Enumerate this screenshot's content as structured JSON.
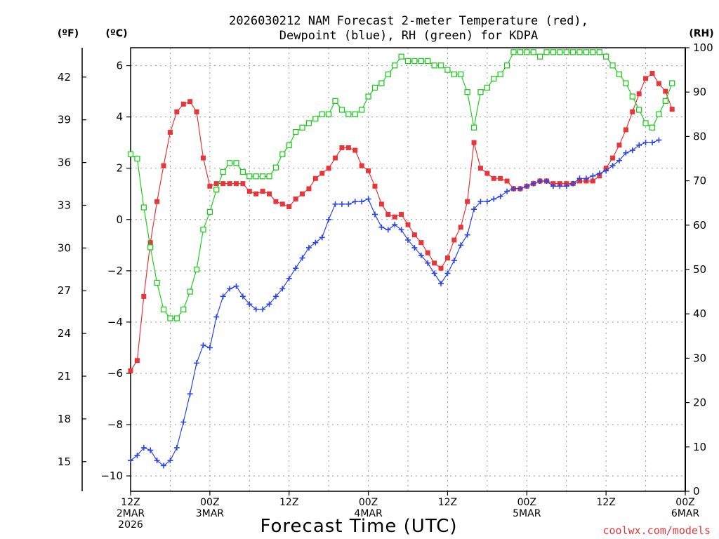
{
  "chart_data": {
    "type": "line",
    "title_line1": "2026030212 NAM Forecast 2-meter Temperature (red),",
    "title_line2": "Dewpoint (blue), RH (green) for KDPA",
    "xlabel": "Forecast Time (UTC)",
    "units": {
      "left_f": "(ºF)",
      "left_c": "(ºC)",
      "right_rh": "(RH)"
    },
    "credit": "coolwx.com/models",
    "x_range_hours": [
      0,
      84
    ],
    "x_ticks": [
      {
        "hour": 0,
        "lines": [
          "12Z",
          "2MAR",
          "2026"
        ]
      },
      {
        "hour": 12,
        "lines": [
          "00Z",
          "3MAR"
        ]
      },
      {
        "hour": 24,
        "lines": [
          "12Z"
        ]
      },
      {
        "hour": 36,
        "lines": [
          "00Z",
          "4MAR"
        ]
      },
      {
        "hour": 48,
        "lines": [
          "12Z"
        ]
      },
      {
        "hour": 60,
        "lines": [
          "00Z",
          "5MAR"
        ]
      },
      {
        "hour": 72,
        "lines": [
          "12Z"
        ]
      },
      {
        "hour": 84,
        "lines": [
          "00Z",
          "6MAR"
        ]
      }
    ],
    "c_axis": {
      "min": -10.6,
      "max": 6.7,
      "ticks": [
        -10,
        -8,
        -6,
        -4,
        -2,
        0,
        2,
        4,
        6
      ]
    },
    "f_axis": {
      "ticks": [
        15,
        18,
        21,
        24,
        27,
        30,
        33,
        36,
        39,
        42
      ]
    },
    "rh_axis": {
      "min": 0,
      "max": 100,
      "ticks": [
        0,
        10,
        20,
        30,
        40,
        50,
        60,
        70,
        80,
        90,
        100
      ]
    },
    "series": [
      {
        "key": "temperature",
        "color": "#e8353a",
        "marker": "filled-square",
        "units": "C",
        "values": [
          [
            0,
            -5.9
          ],
          [
            1,
            -5.5
          ],
          [
            2,
            -3.0
          ],
          [
            3,
            -0.9
          ],
          [
            4,
            0.7
          ],
          [
            5,
            2.1
          ],
          [
            6,
            3.4
          ],
          [
            7,
            4.2
          ],
          [
            8,
            4.5
          ],
          [
            9,
            4.6
          ],
          [
            10,
            4.2
          ],
          [
            11,
            2.4
          ],
          [
            12,
            1.3
          ],
          [
            13,
            1.4
          ],
          [
            14,
            1.4
          ],
          [
            15,
            1.4
          ],
          [
            16,
            1.4
          ],
          [
            17,
            1.4
          ],
          [
            18,
            1.1
          ],
          [
            19,
            1.0
          ],
          [
            20,
            1.1
          ],
          [
            21,
            1.0
          ],
          [
            22,
            0.7
          ],
          [
            23,
            0.6
          ],
          [
            24,
            0.5
          ],
          [
            25,
            0.8
          ],
          [
            26,
            1.0
          ],
          [
            27,
            1.2
          ],
          [
            28,
            1.6
          ],
          [
            29,
            1.8
          ],
          [
            30,
            2.0
          ],
          [
            31,
            2.4
          ],
          [
            32,
            2.8
          ],
          [
            33,
            2.8
          ],
          [
            34,
            2.7
          ],
          [
            35,
            2.1
          ],
          [
            36,
            1.9
          ],
          [
            37,
            1.3
          ],
          [
            38,
            0.6
          ],
          [
            39,
            0.2
          ],
          [
            40,
            0.1
          ],
          [
            41,
            0.2
          ],
          [
            42,
            -0.2
          ],
          [
            43,
            -0.6
          ],
          [
            44,
            -0.9
          ],
          [
            45,
            -1.3
          ],
          [
            46,
            -1.7
          ],
          [
            47,
            -1.9
          ],
          [
            48,
            -1.5
          ],
          [
            49,
            -0.8
          ],
          [
            50,
            -0.3
          ],
          [
            51,
            0.7
          ],
          [
            52,
            3.0
          ],
          [
            53,
            2.0
          ],
          [
            54,
            1.8
          ],
          [
            55,
            1.6
          ],
          [
            56,
            1.6
          ],
          [
            57,
            1.5
          ],
          [
            58,
            1.2
          ],
          [
            59,
            1.2
          ],
          [
            60,
            1.3
          ],
          [
            61,
            1.4
          ],
          [
            62,
            1.5
          ],
          [
            63,
            1.5
          ],
          [
            64,
            1.4
          ],
          [
            65,
            1.4
          ],
          [
            66,
            1.4
          ],
          [
            67,
            1.4
          ],
          [
            68,
            1.5
          ],
          [
            69,
            1.5
          ],
          [
            70,
            1.5
          ],
          [
            71,
            1.7
          ],
          [
            72,
            2.0
          ],
          [
            73,
            2.4
          ],
          [
            74,
            2.9
          ],
          [
            75,
            3.5
          ],
          [
            76,
            4.2
          ],
          [
            77,
            4.9
          ],
          [
            78,
            5.5
          ],
          [
            79,
            5.7
          ],
          [
            80,
            5.3
          ],
          [
            81,
            5.0
          ],
          [
            82,
            4.3
          ]
        ]
      },
      {
        "key": "dewpoint",
        "color": "#2b45e6",
        "marker": "plus",
        "units": "C",
        "values": [
          [
            0,
            -9.4
          ],
          [
            1,
            -9.2
          ],
          [
            2,
            -8.9
          ],
          [
            3,
            -9.0
          ],
          [
            4,
            -9.4
          ],
          [
            5,
            -9.6
          ],
          [
            6,
            -9.4
          ],
          [
            7,
            -8.9
          ],
          [
            8,
            -7.9
          ],
          [
            9,
            -6.8
          ],
          [
            10,
            -5.6
          ],
          [
            11,
            -4.9
          ],
          [
            12,
            -5.0
          ],
          [
            13,
            -3.8
          ],
          [
            14,
            -3.0
          ],
          [
            15,
            -2.7
          ],
          [
            16,
            -2.6
          ],
          [
            17,
            -3.0
          ],
          [
            18,
            -3.3
          ],
          [
            19,
            -3.5
          ],
          [
            20,
            -3.5
          ],
          [
            21,
            -3.3
          ],
          [
            22,
            -3.0
          ],
          [
            23,
            -2.7
          ],
          [
            24,
            -2.3
          ],
          [
            25,
            -1.9
          ],
          [
            26,
            -1.5
          ],
          [
            27,
            -1.1
          ],
          [
            28,
            -0.9
          ],
          [
            29,
            -0.7
          ],
          [
            30,
            0.0
          ],
          [
            31,
            0.6
          ],
          [
            32,
            0.6
          ],
          [
            33,
            0.6
          ],
          [
            34,
            0.7
          ],
          [
            35,
            0.7
          ],
          [
            36,
            0.8
          ],
          [
            37,
            0.2
          ],
          [
            38,
            -0.3
          ],
          [
            39,
            -0.4
          ],
          [
            40,
            -0.2
          ],
          [
            41,
            -0.4
          ],
          [
            42,
            -0.8
          ],
          [
            43,
            -1.1
          ],
          [
            44,
            -1.4
          ],
          [
            45,
            -1.7
          ],
          [
            46,
            -2.1
          ],
          [
            47,
            -2.5
          ],
          [
            48,
            -2.1
          ],
          [
            49,
            -1.6
          ],
          [
            50,
            -1.0
          ],
          [
            51,
            -0.6
          ],
          [
            52,
            0.4
          ],
          [
            53,
            0.7
          ],
          [
            54,
            0.7
          ],
          [
            55,
            0.8
          ],
          [
            56,
            0.9
          ],
          [
            57,
            1.1
          ],
          [
            58,
            1.2
          ],
          [
            59,
            1.2
          ],
          [
            60,
            1.3
          ],
          [
            61,
            1.4
          ],
          [
            62,
            1.5
          ],
          [
            63,
            1.5
          ],
          [
            64,
            1.3
          ],
          [
            65,
            1.3
          ],
          [
            66,
            1.3
          ],
          [
            67,
            1.4
          ],
          [
            68,
            1.6
          ],
          [
            69,
            1.6
          ],
          [
            70,
            1.7
          ],
          [
            71,
            1.8
          ],
          [
            72,
            1.9
          ],
          [
            73,
            2.1
          ],
          [
            74,
            2.3
          ],
          [
            75,
            2.6
          ],
          [
            76,
            2.7
          ],
          [
            77,
            2.9
          ],
          [
            78,
            3.0
          ],
          [
            79,
            3.0
          ],
          [
            80,
            3.1
          ]
        ]
      },
      {
        "key": "rh",
        "color": "#22cc22",
        "marker": "open-square",
        "units": "%",
        "values": [
          [
            0,
            76
          ],
          [
            1,
            75
          ],
          [
            2,
            64
          ],
          [
            3,
            55
          ],
          [
            4,
            47
          ],
          [
            5,
            41
          ],
          [
            6,
            39
          ],
          [
            7,
            39
          ],
          [
            8,
            41
          ],
          [
            9,
            45
          ],
          [
            10,
            50
          ],
          [
            11,
            59
          ],
          [
            12,
            63
          ],
          [
            13,
            68
          ],
          [
            14,
            72
          ],
          [
            15,
            74
          ],
          [
            16,
            74
          ],
          [
            17,
            72
          ],
          [
            18,
            71
          ],
          [
            19,
            71
          ],
          [
            20,
            71
          ],
          [
            21,
            71
          ],
          [
            22,
            73
          ],
          [
            23,
            76
          ],
          [
            24,
            78
          ],
          [
            25,
            81
          ],
          [
            26,
            82
          ],
          [
            27,
            83
          ],
          [
            28,
            84
          ],
          [
            29,
            85
          ],
          [
            30,
            85
          ],
          [
            31,
            88
          ],
          [
            32,
            86
          ],
          [
            33,
            85
          ],
          [
            34,
            85
          ],
          [
            35,
            86
          ],
          [
            36,
            89
          ],
          [
            37,
            91
          ],
          [
            38,
            92
          ],
          [
            39,
            94
          ],
          [
            40,
            96
          ],
          [
            41,
            98
          ],
          [
            42,
            97
          ],
          [
            43,
            97
          ],
          [
            44,
            97
          ],
          [
            45,
            97
          ],
          [
            46,
            96
          ],
          [
            47,
            96
          ],
          [
            48,
            95
          ],
          [
            49,
            94
          ],
          [
            50,
            94
          ],
          [
            51,
            90
          ],
          [
            52,
            82
          ],
          [
            53,
            90
          ],
          [
            54,
            91
          ],
          [
            55,
            93
          ],
          [
            56,
            94
          ],
          [
            57,
            96
          ],
          [
            58,
            99
          ],
          [
            59,
            99
          ],
          [
            60,
            99
          ],
          [
            61,
            99
          ],
          [
            62,
            98
          ],
          [
            63,
            99
          ],
          [
            64,
            99
          ],
          [
            65,
            99
          ],
          [
            66,
            99
          ],
          [
            67,
            99
          ],
          [
            68,
            99
          ],
          [
            69,
            99
          ],
          [
            70,
            99
          ],
          [
            71,
            99
          ],
          [
            72,
            98
          ],
          [
            73,
            96
          ],
          [
            74,
            94
          ],
          [
            75,
            92
          ],
          [
            76,
            89
          ],
          [
            77,
            86
          ],
          [
            78,
            83
          ],
          [
            79,
            82
          ],
          [
            80,
            85
          ],
          [
            81,
            88
          ],
          [
            82,
            92
          ]
        ]
      }
    ]
  }
}
